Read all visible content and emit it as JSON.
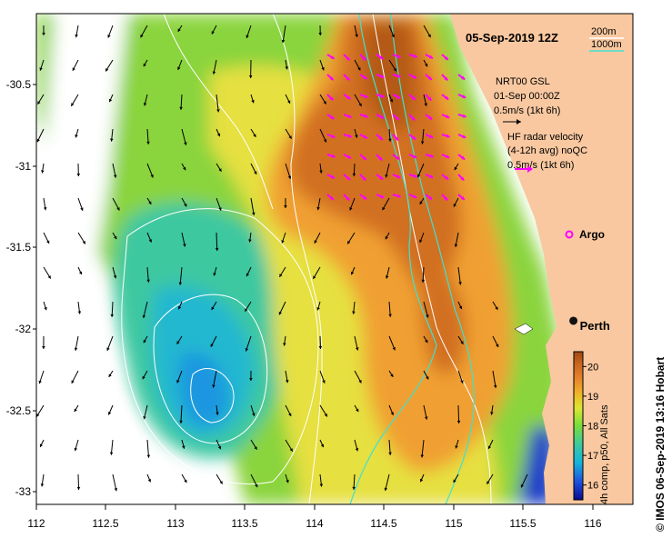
{
  "title": "05-Sep-2019 12Z",
  "depth_legend": {
    "shallow": "200m",
    "deep": "1000m",
    "shallow_color": "#ffffff",
    "deep_color": "#40e0d0"
  },
  "gsl_legend": {
    "line1": "NRT00 GSL",
    "line2": "01-Sep 00:00Z",
    "line3": "0.5m/s (1kt 6h)"
  },
  "hf_legend": {
    "line1": "HF radar velocity",
    "line2": "(4-12h avg) noQC",
    "line3": "0.5m/s (1kt 6h)",
    "color": "#ff00ff"
  },
  "argo": {
    "label": "Argo",
    "lon": 115.83,
    "lat": -31.42,
    "color": "#ff00ff"
  },
  "city": {
    "label": "Perth",
    "lon": 115.86,
    "lat": -31.95
  },
  "axes": {
    "x_ticks": [
      "112",
      "112.5",
      "113",
      "113.5",
      "114",
      "114.5",
      "115",
      "115.5",
      "116"
    ],
    "y_ticks": [
      "-30.5",
      "-31",
      "-31.5",
      "-32",
      "-32.5",
      "-33"
    ],
    "lon_range": [
      112,
      116.3
    ],
    "lat_range": [
      -33.1,
      -30.1
    ]
  },
  "colorbar": {
    "ticks": [
      "16",
      "17",
      "18",
      "19",
      "20"
    ],
    "range": [
      15.5,
      20.5
    ],
    "caption": "4h comp, p50, All Sats",
    "colors": [
      "#0a0a8c",
      "#1e50dc",
      "#14b4dc",
      "#3cc8a0",
      "#78dc3c",
      "#dce632",
      "#f0b428",
      "#e6822d",
      "#c8641e",
      "#a04614"
    ]
  },
  "credit": "© IMOS 06-Sep-2019 13:16 Hobart",
  "land_color": "#f9c8a0"
}
